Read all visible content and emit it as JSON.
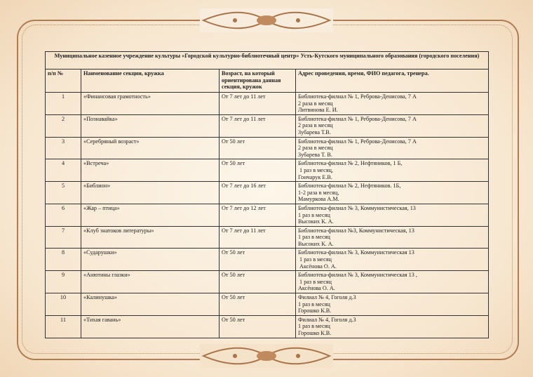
{
  "title": "Муниципальное казенное учреждение культуры «Городской культурно-библиотечный центр»   Усть-Кутского муниципального образования (городского поселения)",
  "columns": [
    "п/п №",
    "Наименование секции, кружка",
    "Возраст, на который ориентирована данная секция, кружок",
    "Адрес проведения, время, ФИО педагога, тренера."
  ],
  "rows": [
    {
      "n": "1",
      "name": "«Финансовая грамотность»",
      "age": "От 7 лет до 11 лет",
      "addr": "Библиотека-филиал № 1, Реброва-Денисова, 7 А",
      "time": "2 раза в месяц",
      "teacher": "Литвинова Е. И."
    },
    {
      "n": "2",
      "name": "«Познавайка»",
      "age": "От 7 лет до 11 лет",
      "addr": "Библиотека-филиал № 1, Реброва-Денисова, 7 А",
      "time": "2 раза в месяц",
      "teacher": "Зубарева Т.В."
    },
    {
      "n": "3",
      "name": "«Серебряный возраст»",
      "age": "От 50 лет",
      "addr": "Библиотека-филиал № 1, Реброва-Денисова, 7 А",
      "time": "2 раза в месяц",
      "teacher": "Зубарева Т. В."
    },
    {
      "n": "4",
      "name": "«Встреча»",
      "age": "От 50 лет",
      "addr": "Библиотека-филиал № 2, Нефтяников, 1 Б,",
      "time": " 1 раз в месяц,",
      "teacher": "Гончарук Е.В."
    },
    {
      "n": "5",
      "name": "«Библион»",
      "age": " От 7 лет до 16 лет",
      "addr": "Библиотека-филиал № 2, Нефтяников. 1Б,",
      "time": "1-2 раза в месяц,",
      "teacher": "Мамуркова А.М."
    },
    {
      "n": "6",
      "name": "«Жар – птица»",
      "age": "От 7 лет до 12 лет",
      "addr": "Библиотека-филиал № 3,  Коммунистическая, 13",
      "time": "1 раз в месяц",
      "teacher": "Высоких К. А."
    },
    {
      "n": "7",
      "name": "«Клуб знатоков литературы»",
      "age": "От 7 лет до 11 лет",
      "addr": "Библиотека-филиал №3, Коммунистическая, 13",
      "time": "1 раз в месяц",
      "teacher": "Высоких К. А."
    },
    {
      "n": "8",
      "name": "«Сударушки»",
      "age": "От 50 лет",
      "addr": "Библиотека-филиал № 3,  Коммунистическая 13",
      "time": " 1 раз в месяц",
      "teacher": " Аксёнова О. А."
    },
    {
      "n": "9",
      "name": "«Анютины глазки»",
      "age": "От 50 лет",
      "addr": "Библиотека-филиал № 3,  Коммунистическая 13 ,",
      "time": " 1 раз в месяц",
      "teacher": "Аксёнова О. А."
    },
    {
      "n": "10",
      "name": "«Калинушка»",
      "age": "От 50 лет",
      "addr": "Филиал  № 4, Гоголя д.3",
      "time": "1 раз в месяц",
      "teacher": "Горошко К.В."
    },
    {
      "n": "11",
      "name": "«Тихая гавань»",
      "age": "От 50 лет",
      "addr": "Филиал № 4, Гоголя д.3",
      "time": "1 раз в месяц",
      "teacher": "Горошко К.В."
    }
  ]
}
